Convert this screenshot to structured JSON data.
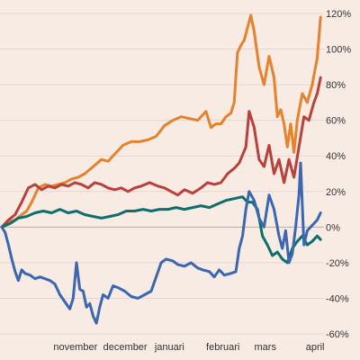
{
  "chart_data": {
    "type": "line",
    "title": "",
    "xlabel": "",
    "ylabel": "",
    "ylim": [
      -60,
      120
    ],
    "yticks": [
      -60,
      -40,
      -20,
      0,
      20,
      40,
      60,
      80,
      100,
      120
    ],
    "ytick_labels": [
      "-60%",
      "-40%",
      "-20%",
      "0%",
      "20%",
      "40%",
      "60%",
      "80%",
      "100%",
      "120%"
    ],
    "xlim": [
      "2023-10-02",
      "2024-04-12"
    ],
    "xticks": [
      {
        "date": "2023-11-01",
        "label": "november"
      },
      {
        "date": "2023-12-01",
        "label": "december"
      },
      {
        "date": "2024-01-01",
        "label": "januari"
      },
      {
        "date": "2024-02-01",
        "label": "februari"
      },
      {
        "date": "2024-03-01",
        "label": "mars"
      },
      {
        "date": "2024-04-01",
        "label": "april"
      }
    ],
    "grid": true,
    "legend": "none",
    "series": [
      {
        "color": "#e6822e",
        "points": [
          [
            "2023-10-02",
            0
          ],
          [
            "2023-10-06",
            3
          ],
          [
            "2023-10-10",
            4
          ],
          [
            "2023-10-14",
            7
          ],
          [
            "2023-10-17",
            9
          ],
          [
            "2023-10-20",
            14
          ],
          [
            "2023-10-24",
            22
          ],
          [
            "2023-10-28",
            24
          ],
          [
            "2023-11-01",
            23
          ],
          [
            "2023-11-05",
            24
          ],
          [
            "2023-11-09",
            25
          ],
          [
            "2023-11-13",
            27
          ],
          [
            "2023-11-17",
            28
          ],
          [
            "2023-11-21",
            30
          ],
          [
            "2023-11-26",
            34
          ],
          [
            "2023-12-01",
            38
          ],
          [
            "2023-12-05",
            37
          ],
          [
            "2023-12-09",
            41
          ],
          [
            "2023-12-14",
            46
          ],
          [
            "2023-12-19",
            48
          ],
          [
            "2023-12-24",
            48
          ],
          [
            "2023-12-29",
            49
          ],
          [
            "2024-01-03",
            51
          ],
          [
            "2024-01-08",
            57
          ],
          [
            "2024-01-13",
            60
          ],
          [
            "2024-01-18",
            62
          ],
          [
            "2024-01-23",
            61
          ],
          [
            "2024-01-28",
            60
          ],
          [
            "2024-02-02",
            65
          ],
          [
            "2024-02-05",
            56
          ],
          [
            "2024-02-08",
            58
          ],
          [
            "2024-02-11",
            58
          ],
          [
            "2024-02-14",
            62
          ],
          [
            "2024-02-17",
            64
          ],
          [
            "2024-02-19",
            70
          ],
          [
            "2024-02-21",
            98
          ],
          [
            "2024-02-23",
            102
          ],
          [
            "2024-02-25",
            105
          ],
          [
            "2024-02-27",
            112
          ],
          [
            "2024-02-29",
            119
          ],
          [
            "2024-03-02",
            110
          ],
          [
            "2024-03-05",
            90
          ],
          [
            "2024-03-08",
            80
          ],
          [
            "2024-03-11",
            96
          ],
          [
            "2024-03-14",
            84
          ],
          [
            "2024-03-16",
            62
          ],
          [
            "2024-03-18",
            66
          ],
          [
            "2024-03-20",
            58
          ],
          [
            "2024-03-22",
            45
          ],
          [
            "2024-03-24",
            58
          ],
          [
            "2024-03-26",
            42
          ],
          [
            "2024-03-28",
            60
          ],
          [
            "2024-03-31",
            75
          ],
          [
            "2024-04-03",
            70
          ],
          [
            "2024-04-06",
            80
          ],
          [
            "2024-04-09",
            95
          ],
          [
            "2024-04-11",
            118
          ]
        ]
      },
      {
        "color": "#b9403b",
        "points": [
          [
            "2023-10-02",
            0
          ],
          [
            "2023-10-06",
            4
          ],
          [
            "2023-10-10",
            7
          ],
          [
            "2023-10-14",
            14
          ],
          [
            "2023-10-18",
            22
          ],
          [
            "2023-10-22",
            24
          ],
          [
            "2023-10-26",
            21
          ],
          [
            "2023-10-30",
            23
          ],
          [
            "2023-11-03",
            22
          ],
          [
            "2023-11-07",
            24
          ],
          [
            "2023-11-11",
            23
          ],
          [
            "2023-11-15",
            25
          ],
          [
            "2023-11-19",
            24
          ],
          [
            "2023-11-23",
            22
          ],
          [
            "2023-11-27",
            25
          ],
          [
            "2023-12-01",
            24
          ],
          [
            "2023-12-05",
            22
          ],
          [
            "2023-12-09",
            21
          ],
          [
            "2023-12-13",
            22
          ],
          [
            "2023-12-17",
            20
          ],
          [
            "2023-12-21",
            22
          ],
          [
            "2023-12-25",
            23
          ],
          [
            "2023-12-30",
            25
          ],
          [
            "2024-01-04",
            23
          ],
          [
            "2024-01-08",
            22
          ],
          [
            "2024-01-12",
            20
          ],
          [
            "2024-01-16",
            18
          ],
          [
            "2024-01-20",
            21
          ],
          [
            "2024-01-25",
            19
          ],
          [
            "2024-01-30",
            22
          ],
          [
            "2024-02-03",
            25
          ],
          [
            "2024-02-07",
            24
          ],
          [
            "2024-02-11",
            25
          ],
          [
            "2024-02-15",
            30
          ],
          [
            "2024-02-19",
            33
          ],
          [
            "2024-02-22",
            36
          ],
          [
            "2024-02-26",
            45
          ],
          [
            "2024-02-28",
            65
          ],
          [
            "2024-03-02",
            56
          ],
          [
            "2024-03-05",
            38
          ],
          [
            "2024-03-08",
            34
          ],
          [
            "2024-03-11",
            46
          ],
          [
            "2024-03-14",
            30
          ],
          [
            "2024-03-17",
            38
          ],
          [
            "2024-03-20",
            25
          ],
          [
            "2024-03-23",
            38
          ],
          [
            "2024-03-26",
            28
          ],
          [
            "2024-03-29",
            45
          ],
          [
            "2024-04-01",
            62
          ],
          [
            "2024-04-04",
            60
          ],
          [
            "2024-04-07",
            70
          ],
          [
            "2024-04-09",
            75
          ],
          [
            "2024-04-11",
            84
          ]
        ]
      },
      {
        "color": "#0e6e6b",
        "points": [
          [
            "2023-10-02",
            0
          ],
          [
            "2023-10-07",
            2
          ],
          [
            "2023-10-12",
            5
          ],
          [
            "2023-10-17",
            6
          ],
          [
            "2023-10-22",
            8
          ],
          [
            "2023-10-27",
            9
          ],
          [
            "2023-11-01",
            8
          ],
          [
            "2023-11-06",
            10
          ],
          [
            "2023-11-11",
            8
          ],
          [
            "2023-11-16",
            9
          ],
          [
            "2023-11-21",
            7
          ],
          [
            "2023-11-26",
            6
          ],
          [
            "2023-12-01",
            5
          ],
          [
            "2023-12-06",
            6
          ],
          [
            "2023-12-11",
            7
          ],
          [
            "2023-12-16",
            9
          ],
          [
            "2023-12-21",
            9
          ],
          [
            "2023-12-26",
            10
          ],
          [
            "2023-12-31",
            9
          ],
          [
            "2024-01-05",
            10
          ],
          [
            "2024-01-10",
            10
          ],
          [
            "2024-01-15",
            11
          ],
          [
            "2024-01-20",
            10
          ],
          [
            "2024-01-25",
            11
          ],
          [
            "2024-01-30",
            12
          ],
          [
            "2024-02-04",
            11
          ],
          [
            "2024-02-09",
            13
          ],
          [
            "2024-02-14",
            15
          ],
          [
            "2024-02-19",
            16
          ],
          [
            "2024-02-24",
            17
          ],
          [
            "2024-02-27",
            14
          ],
          [
            "2024-03-01",
            14
          ],
          [
            "2024-03-04",
            10
          ],
          [
            "2024-03-07",
            -5
          ],
          [
            "2024-03-10",
            -10
          ],
          [
            "2024-03-13",
            -16
          ],
          [
            "2024-03-16",
            -14
          ],
          [
            "2024-03-19",
            -18
          ],
          [
            "2024-03-22",
            -20
          ],
          [
            "2024-03-25",
            -12
          ],
          [
            "2024-03-28",
            -8
          ],
          [
            "2024-03-31",
            -5
          ],
          [
            "2024-04-03",
            -10
          ],
          [
            "2024-04-06",
            -8
          ],
          [
            "2024-04-09",
            -5
          ],
          [
            "2024-04-11",
            -7
          ]
        ]
      },
      {
        "color": "#3a67b0",
        "points": [
          [
            "2023-10-02",
            0
          ],
          [
            "2023-10-04",
            -3
          ],
          [
            "2023-10-06",
            -10
          ],
          [
            "2023-10-08",
            -18
          ],
          [
            "2023-10-10",
            -25
          ],
          [
            "2023-10-12",
            -30
          ],
          [
            "2023-10-14",
            -24
          ],
          [
            "2023-10-16",
            -26
          ],
          [
            "2023-10-19",
            -27
          ],
          [
            "2023-10-22",
            -29
          ],
          [
            "2023-10-25",
            -28
          ],
          [
            "2023-10-28",
            -29
          ],
          [
            "2023-10-31",
            -30
          ],
          [
            "2023-11-03",
            -32
          ],
          [
            "2023-11-06",
            -38
          ],
          [
            "2023-11-09",
            -42
          ],
          [
            "2023-11-12",
            -46
          ],
          [
            "2023-11-14",
            -40
          ],
          [
            "2023-11-16",
            -20
          ],
          [
            "2023-11-18",
            -35
          ],
          [
            "2023-11-20",
            -36
          ],
          [
            "2023-11-22",
            -45
          ],
          [
            "2023-11-24",
            -43
          ],
          [
            "2023-11-26",
            -50
          ],
          [
            "2023-11-28",
            -54
          ],
          [
            "2023-11-30",
            -45
          ],
          [
            "2023-12-02",
            -38
          ],
          [
            "2023-12-05",
            -40
          ],
          [
            "2023-12-08",
            -33
          ],
          [
            "2023-12-11",
            -34
          ],
          [
            "2023-12-15",
            -36
          ],
          [
            "2023-12-19",
            -39
          ],
          [
            "2023-12-23",
            -40
          ],
          [
            "2023-12-27",
            -38
          ],
          [
            "2023-12-31",
            -36
          ],
          [
            "2024-01-03",
            -28
          ],
          [
            "2024-01-06",
            -20
          ],
          [
            "2024-01-09",
            -18
          ],
          [
            "2024-01-13",
            -19
          ],
          [
            "2024-01-16",
            -21
          ],
          [
            "2024-01-20",
            -22
          ],
          [
            "2024-01-24",
            -20
          ],
          [
            "2024-01-28",
            -23
          ],
          [
            "2024-01-31",
            -24
          ],
          [
            "2024-02-04",
            -25
          ],
          [
            "2024-02-07",
            -28
          ],
          [
            "2024-02-10",
            -24
          ],
          [
            "2024-02-13",
            -27
          ],
          [
            "2024-02-17",
            -26
          ],
          [
            "2024-02-20",
            -25
          ],
          [
            "2024-02-22",
            -12
          ],
          [
            "2024-02-24",
            -5
          ],
          [
            "2024-02-26",
            10
          ],
          [
            "2024-02-28",
            20
          ],
          [
            "2024-03-02",
            15
          ],
          [
            "2024-03-05",
            5
          ],
          [
            "2024-03-08",
            0
          ],
          [
            "2024-03-11",
            18
          ],
          [
            "2024-03-14",
            10
          ],
          [
            "2024-03-17",
            -5
          ],
          [
            "2024-03-19",
            -12
          ],
          [
            "2024-03-21",
            -2
          ],
          [
            "2024-03-23",
            -20
          ],
          [
            "2024-03-25",
            -15
          ],
          [
            "2024-03-27",
            0
          ],
          [
            "2024-03-29",
            18
          ],
          [
            "2024-03-30",
            36
          ],
          [
            "2024-04-01",
            -10
          ],
          [
            "2024-04-03",
            -2
          ],
          [
            "2024-04-05",
            0
          ],
          [
            "2024-04-07",
            2
          ],
          [
            "2024-04-09",
            4
          ],
          [
            "2024-04-11",
            8
          ]
        ]
      }
    ]
  }
}
